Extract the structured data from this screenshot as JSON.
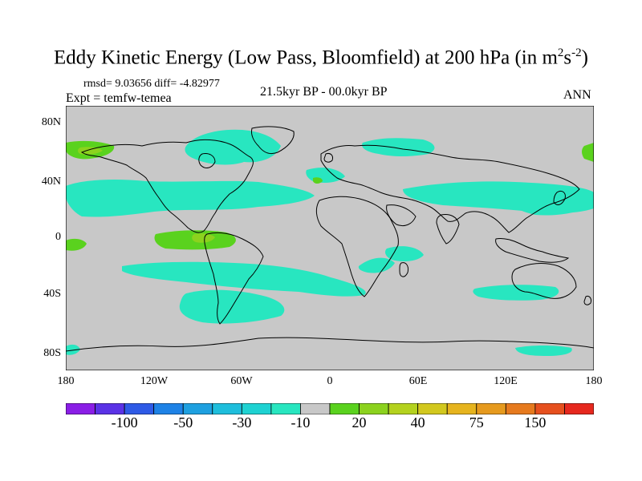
{
  "title": {
    "main": "Eddy Kinetic Energy (Low Pass, Bloomfield) at 200 hPa (in m",
    "sup1": "2",
    "mid": "s",
    "sup2": "-2",
    "end": ")"
  },
  "stats": "rmsd= 9.03656 diff= -4.82977",
  "expt": "Expt = temfw-temea",
  "period": "21.5kyr BP - 00.0kyr BP",
  "season": "ANN",
  "lat_labels": [
    "80N",
    "40N",
    "0",
    "40S",
    "80S"
  ],
  "lon_labels": [
    "180",
    "120W",
    "60W",
    "0",
    "60E",
    "120E",
    "180"
  ],
  "colorbar": {
    "colors": [
      "#8a1ee6",
      "#5a32e6",
      "#2e5ae6",
      "#1e82e6",
      "#1ea0e0",
      "#1ebedc",
      "#1ed2d2",
      "#28e6c0",
      "#c8c8c8",
      "#5ad21e",
      "#8cd21e",
      "#b4d21e",
      "#d2c81e",
      "#e6b41e",
      "#e69a1e",
      "#e67a1e",
      "#e6501e",
      "#e6281e"
    ],
    "labels": [
      {
        "text": "-100",
        "index": 2
      },
      {
        "text": "-50",
        "index": 4
      },
      {
        "text": "-30",
        "index": 6
      },
      {
        "text": "-10",
        "index": 8
      },
      {
        "text": "20",
        "index": 10
      },
      {
        "text": "40",
        "index": 12
      },
      {
        "text": "75",
        "index": 14
      },
      {
        "text": "150",
        "index": 16
      }
    ]
  },
  "colors": {
    "land_sea_background": "#c8c8c8",
    "cyan_fill": "#28e6c0",
    "green_fill": "#5ad21e",
    "lime_fill": "#8cd21e"
  }
}
